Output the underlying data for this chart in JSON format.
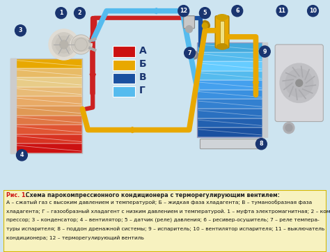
{
  "bg_color": "#cde4f0",
  "diagram_bg": "#f0f8ff",
  "caption_bg": "#f7f2c0",
  "caption_border": "#d4b800",
  "title_bold": "Рис. 1.",
  "title_text": " Схема парокомпрессионного кондиционера с терморегулирующим вентилем:",
  "caption_lines": [
    "А – сжатый газ с высоким давлением и температурой; Б – жидкая фаза хладагента; В – туманообразная фаза",
    "хладагента; Г – газообразный хладагент с низким давлением и температурой. 1 – муфта электромагнитная; 2 – ком-",
    "прессор; 3 – конденсатор; 4 – вентилятор; 5 – датчик (реле) давления; 6 – ресивер-осушитель; 7 – реле темпера-",
    "туры испарителя; 8 – поддон дренажной системы; 9 – испаритель; 10 – вентилятор испарителя; 11 – выключатель",
    "кондиционера; 12 – терморегулирующий вентиль"
  ],
  "legend_items": [
    {
      "label": "А",
      "color": "#cc1111"
    },
    {
      "label": "Б",
      "color": "#e8a800"
    },
    {
      "label": "В",
      "color": "#1a50a0"
    },
    {
      "label": "Г",
      "color": "#55bbee"
    }
  ],
  "red_col": "#cc2222",
  "gold_col": "#e8a800",
  "dk_blue": "#1a50a0",
  "lt_blue": "#55bbee",
  "label_bg": "#1a3570",
  "label_fg": "#ffffff",
  "pipe_lw": 4.5,
  "cond_colors": [
    "#cc1111",
    "#d83322",
    "#e05533",
    "#e07744",
    "#e09955",
    "#e8aa66",
    "#e8bb77",
    "#e8cc88",
    "#e8bb66",
    "#e8a800"
  ],
  "evap_colors": [
    "#1a50a0",
    "#2260b0",
    "#2a70c0",
    "#3380d0",
    "#3a90e0",
    "#44a0ee",
    "#55bbee",
    "#66ccff",
    "#55bbee",
    "#44aadd"
  ],
  "compressor_color": "#e8e4dc",
  "condenser_fan_color": "#d0d0d0",
  "evap_fan_color": "#c8c8cc"
}
